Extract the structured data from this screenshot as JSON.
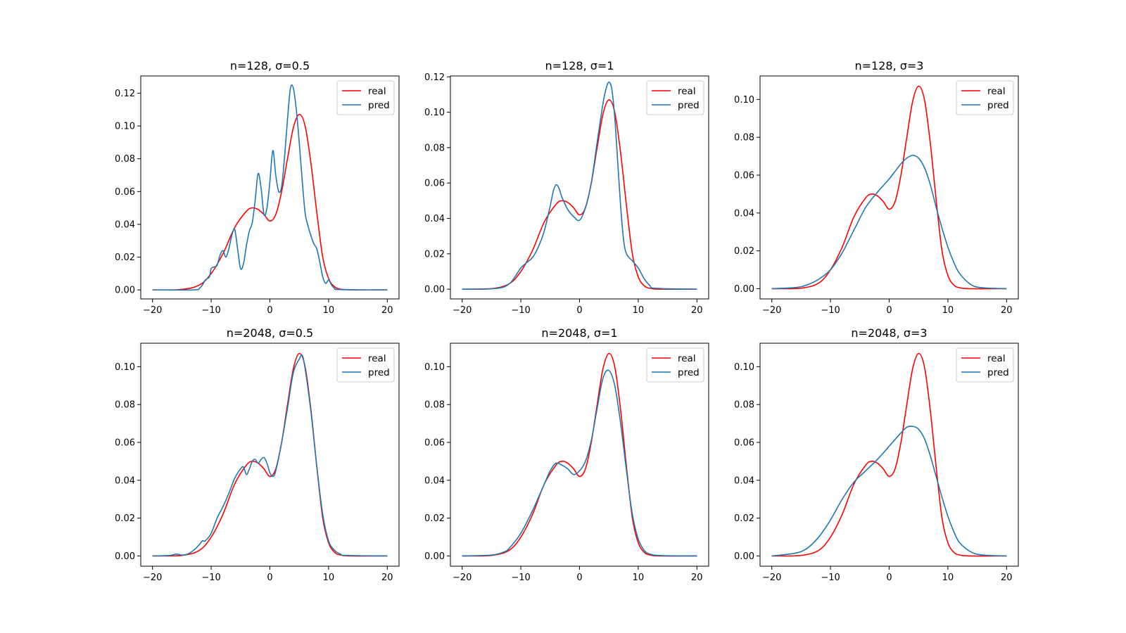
{
  "figure": {
    "background": "#ffffff",
    "rows": 2,
    "cols": 3,
    "legend_location": "top-right"
  },
  "series_style": {
    "real": {
      "color": "#ff0000"
    },
    "pred": {
      "color": "#1f77b4"
    }
  },
  "chart_data": [
    {
      "type": "line",
      "title": "n=128, σ=0.5",
      "xlabel": "",
      "ylabel": "",
      "xlim": [
        -22,
        22
      ],
      "ylim": [
        -0.0055,
        0.1305
      ],
      "xticks": [
        -20,
        -10,
        0,
        10,
        20
      ],
      "xtick_labels": [
        "−20",
        "−10",
        "0",
        "10",
        "20"
      ],
      "yticks": [
        0,
        0.02,
        0.04,
        0.06,
        0.08,
        0.1,
        0.12
      ],
      "ytick_labels": [
        "0.00",
        "0.02",
        "0.04",
        "0.06",
        "0.08",
        "0.10",
        "0.12"
      ],
      "legend": [
        "real",
        "pred"
      ],
      "grid": false,
      "series": [
        {
          "name": "real",
          "x": [
            -20,
            -15,
            -12,
            -10,
            -8,
            -6,
            -4,
            -3,
            -2,
            -1,
            0,
            1,
            2,
            3,
            4,
            5,
            6,
            7,
            8,
            9,
            10,
            11,
            12,
            14,
            20
          ],
          "y": [
            0,
            0.0003,
            0.003,
            0.01,
            0.022,
            0.038,
            0.048,
            0.05,
            0.049,
            0.046,
            0.042,
            0.046,
            0.06,
            0.08,
            0.099,
            0.107,
            0.1,
            0.077,
            0.047,
            0.02,
            0.007,
            0.002,
            0.0005,
            0,
            0
          ]
        },
        {
          "name": "pred",
          "x": [
            -20,
            -13,
            -12,
            -11.5,
            -11,
            -10.3,
            -10,
            -9.5,
            -9,
            -8.5,
            -8,
            -7.5,
            -7,
            -6.5,
            -6,
            -5.5,
            -5,
            -4.5,
            -4,
            -3.5,
            -3,
            -2.5,
            -2,
            -1.5,
            -1,
            -0.5,
            0,
            0.5,
            1,
            1.5,
            2,
            2.5,
            3,
            3.5,
            4,
            4.5,
            5,
            5.5,
            6,
            6.5,
            7,
            7.5,
            8,
            8.5,
            9,
            9.5,
            10,
            10.5,
            11,
            12,
            20
          ],
          "y": [
            0,
            0,
            0.001,
            0.003,
            0.006,
            0.008,
            0.013,
            0.014,
            0.015,
            0.021,
            0.024,
            0.02,
            0.025,
            0.033,
            0.037,
            0.025,
            0.013,
            0.016,
            0.027,
            0.036,
            0.041,
            0.055,
            0.071,
            0.062,
            0.046,
            0.05,
            0.066,
            0.085,
            0.07,
            0.06,
            0.063,
            0.081,
            0.104,
            0.123,
            0.123,
            0.11,
            0.09,
            0.067,
            0.047,
            0.039,
            0.033,
            0.028,
            0.025,
            0.017,
            0.008,
            0.004,
            0.006,
            0.003,
            0.001,
            0.0002,
            0
          ]
        }
      ]
    },
    {
      "type": "line",
      "title": "n=128, σ=1",
      "xlabel": "",
      "ylabel": "",
      "xlim": [
        -22,
        22
      ],
      "ylim": [
        -0.0055,
        0.1205
      ],
      "xticks": [
        -20,
        -10,
        0,
        10,
        20
      ],
      "xtick_labels": [
        "−20",
        "−10",
        "0",
        "10",
        "20"
      ],
      "yticks": [
        0,
        0.02,
        0.04,
        0.06,
        0.08,
        0.1,
        0.12
      ],
      "ytick_labels": [
        "0.00",
        "0.02",
        "0.04",
        "0.06",
        "0.08",
        "0.10",
        "0.12"
      ],
      "legend": [
        "real",
        "pred"
      ],
      "grid": false,
      "series": [
        {
          "name": "real",
          "x": [
            -20,
            -15,
            -12,
            -10,
            -8,
            -6,
            -4,
            -3,
            -2,
            -1,
            0,
            1,
            2,
            3,
            4,
            5,
            6,
            7,
            8,
            9,
            10,
            11,
            12,
            14,
            20
          ],
          "y": [
            0,
            0.0003,
            0.003,
            0.01,
            0.022,
            0.038,
            0.048,
            0.05,
            0.049,
            0.046,
            0.042,
            0.046,
            0.06,
            0.08,
            0.099,
            0.107,
            0.1,
            0.077,
            0.047,
            0.02,
            0.007,
            0.002,
            0.0005,
            0,
            0
          ]
        },
        {
          "name": "pred",
          "x": [
            -20,
            -14,
            -12,
            -11,
            -10,
            -9,
            -8,
            -7,
            -6,
            -5,
            -4.5,
            -4,
            -3.5,
            -3,
            -2,
            -1,
            0,
            1,
            2,
            3,
            4,
            4.5,
            5,
            5.5,
            6,
            6.5,
            7,
            7.5,
            8,
            9,
            10,
            11,
            12,
            13,
            20
          ],
          "y": [
            0,
            0.0005,
            0.003,
            0.007,
            0.012,
            0.015,
            0.018,
            0.024,
            0.033,
            0.047,
            0.055,
            0.059,
            0.057,
            0.052,
            0.045,
            0.041,
            0.039,
            0.046,
            0.06,
            0.083,
            0.105,
            0.113,
            0.117,
            0.113,
            0.097,
            0.072,
            0.047,
            0.028,
            0.02,
            0.016,
            0.012,
            0.006,
            0.002,
            0.0005,
            0
          ]
        }
      ]
    },
    {
      "type": "line",
      "title": "n=128, σ=3",
      "xlabel": "",
      "ylabel": "",
      "xlim": [
        -22,
        22
      ],
      "ylim": [
        -0.0054,
        0.1124
      ],
      "xticks": [
        -20,
        -10,
        0,
        10,
        20
      ],
      "xtick_labels": [
        "−20",
        "−10",
        "0",
        "10",
        "20"
      ],
      "yticks": [
        0,
        0.02,
        0.04,
        0.06,
        0.08,
        0.1
      ],
      "ytick_labels": [
        "0.00",
        "0.02",
        "0.04",
        "0.06",
        "0.08",
        "0.10"
      ],
      "legend": [
        "real",
        "pred"
      ],
      "grid": false,
      "series": [
        {
          "name": "real",
          "x": [
            -20,
            -15,
            -12,
            -10,
            -8,
            -6,
            -4,
            -3,
            -2,
            -1,
            0,
            1,
            2,
            3,
            4,
            5,
            6,
            7,
            8,
            9,
            10,
            11,
            12,
            14,
            20
          ],
          "y": [
            0,
            0.0003,
            0.003,
            0.01,
            0.022,
            0.038,
            0.048,
            0.05,
            0.049,
            0.046,
            0.042,
            0.046,
            0.06,
            0.08,
            0.099,
            0.107,
            0.1,
            0.077,
            0.047,
            0.02,
            0.007,
            0.002,
            0.0005,
            0,
            0
          ]
        },
        {
          "name": "pred",
          "x": [
            -20,
            -16,
            -14,
            -12,
            -10,
            -8,
            -6,
            -4,
            -2,
            0,
            2,
            3,
            4,
            5,
            6,
            7,
            8,
            9,
            10,
            11,
            12,
            14,
            16,
            20
          ],
          "y": [
            0,
            0.0006,
            0.002,
            0.005,
            0.01,
            0.019,
            0.031,
            0.043,
            0.051,
            0.058,
            0.066,
            0.069,
            0.0705,
            0.069,
            0.064,
            0.055,
            0.043,
            0.032,
            0.022,
            0.014,
            0.008,
            0.002,
            0.0005,
            0
          ]
        }
      ]
    },
    {
      "type": "line",
      "title": "n=2048, σ=0.5",
      "xlabel": "",
      "ylabel": "",
      "xlim": [
        -22,
        22
      ],
      "ylim": [
        -0.0054,
        0.1124
      ],
      "xticks": [
        -20,
        -10,
        0,
        10,
        20
      ],
      "xtick_labels": [
        "−20",
        "−10",
        "0",
        "10",
        "20"
      ],
      "yticks": [
        0,
        0.02,
        0.04,
        0.06,
        0.08,
        0.1
      ],
      "ytick_labels": [
        "0.00",
        "0.02",
        "0.04",
        "0.06",
        "0.08",
        "0.10"
      ],
      "legend": [
        "real",
        "pred"
      ],
      "grid": false,
      "series": [
        {
          "name": "real",
          "x": [
            -20,
            -15,
            -12,
            -10,
            -8,
            -6,
            -4,
            -3,
            -2,
            -1,
            0,
            1,
            2,
            3,
            4,
            5,
            6,
            7,
            8,
            9,
            10,
            11,
            12,
            14,
            20
          ],
          "y": [
            0,
            0.0003,
            0.003,
            0.01,
            0.022,
            0.038,
            0.048,
            0.05,
            0.049,
            0.046,
            0.042,
            0.046,
            0.06,
            0.08,
            0.099,
            0.107,
            0.1,
            0.077,
            0.047,
            0.02,
            0.007,
            0.002,
            0.0005,
            0,
            0
          ]
        },
        {
          "name": "pred",
          "x": [
            -20,
            -17,
            -16,
            -15,
            -14,
            -13,
            -12,
            -11.5,
            -11,
            -10,
            -9,
            -8,
            -7,
            -6,
            -5,
            -4.5,
            -4,
            -3.5,
            -3,
            -2.5,
            -2,
            -1.5,
            -1,
            -0.5,
            0,
            0.5,
            1,
            2,
            3,
            4,
            5,
            5.5,
            6,
            7,
            8,
            9,
            10,
            11,
            12,
            13,
            20
          ],
          "y": [
            0,
            0.0003,
            0.001,
            0.0005,
            0.001,
            0.003,
            0.006,
            0.008,
            0.008,
            0.012,
            0.02,
            0.026,
            0.033,
            0.041,
            0.046,
            0.047,
            0.043,
            0.046,
            0.05,
            0.051,
            0.049,
            0.051,
            0.052,
            0.049,
            0.044,
            0.042,
            0.045,
            0.06,
            0.078,
            0.097,
            0.104,
            0.106,
            0.099,
            0.076,
            0.047,
            0.022,
            0.008,
            0.003,
            0.001,
            0.0003,
            0
          ]
        }
      ]
    },
    {
      "type": "line",
      "title": "n=2048, σ=1",
      "xlabel": "",
      "ylabel": "",
      "xlim": [
        -22,
        22
      ],
      "ylim": [
        -0.0054,
        0.1124
      ],
      "xticks": [
        -20,
        -10,
        0,
        10,
        20
      ],
      "xtick_labels": [
        "−20",
        "−10",
        "0",
        "10",
        "20"
      ],
      "yticks": [
        0,
        0.02,
        0.04,
        0.06,
        0.08,
        0.1
      ],
      "ytick_labels": [
        "0.00",
        "0.02",
        "0.04",
        "0.06",
        "0.08",
        "0.10"
      ],
      "legend": [
        "real",
        "pred"
      ],
      "grid": false,
      "series": [
        {
          "name": "real",
          "x": [
            -20,
            -15,
            -12,
            -10,
            -8,
            -6,
            -4,
            -3,
            -2,
            -1,
            0,
            1,
            2,
            3,
            4,
            5,
            6,
            7,
            8,
            9,
            10,
            11,
            12,
            14,
            20
          ],
          "y": [
            0,
            0.0003,
            0.003,
            0.01,
            0.022,
            0.038,
            0.048,
            0.05,
            0.049,
            0.046,
            0.042,
            0.046,
            0.06,
            0.08,
            0.099,
            0.107,
            0.1,
            0.077,
            0.047,
            0.02,
            0.007,
            0.002,
            0.0005,
            0,
            0
          ]
        },
        {
          "name": "pred",
          "x": [
            -20,
            -15,
            -13,
            -12,
            -10,
            -8,
            -6,
            -5,
            -4,
            -3,
            -2,
            -1,
            0,
            1,
            2,
            3,
            4,
            5,
            6,
            7,
            8,
            9,
            10,
            11,
            12,
            14,
            20
          ],
          "y": [
            0,
            0.0005,
            0.002,
            0.004,
            0.012,
            0.024,
            0.038,
            0.045,
            0.049,
            0.048,
            0.046,
            0.043,
            0.045,
            0.05,
            0.061,
            0.078,
            0.094,
            0.098,
            0.09,
            0.07,
            0.045,
            0.022,
            0.009,
            0.003,
            0.001,
            0.0002,
            0
          ]
        }
      ]
    },
    {
      "type": "line",
      "title": "n=2048, σ=3",
      "xlabel": "",
      "ylabel": "",
      "xlim": [
        -22,
        22
      ],
      "ylim": [
        -0.0054,
        0.1124
      ],
      "xticks": [
        -20,
        -10,
        0,
        10,
        20
      ],
      "xtick_labels": [
        "−20",
        "−10",
        "0",
        "10",
        "20"
      ],
      "yticks": [
        0,
        0.02,
        0.04,
        0.06,
        0.08,
        0.1
      ],
      "ytick_labels": [
        "0.00",
        "0.02",
        "0.04",
        "0.06",
        "0.08",
        "0.10"
      ],
      "legend": [
        "real",
        "pred"
      ],
      "grid": false,
      "series": [
        {
          "name": "real",
          "x": [
            -20,
            -15,
            -12,
            -10,
            -8,
            -6,
            -4,
            -3,
            -2,
            -1,
            0,
            1,
            2,
            3,
            4,
            5,
            6,
            7,
            8,
            9,
            10,
            11,
            12,
            14,
            20
          ],
          "y": [
            0,
            0.0003,
            0.003,
            0.01,
            0.022,
            0.038,
            0.048,
            0.05,
            0.049,
            0.046,
            0.042,
            0.046,
            0.06,
            0.08,
            0.099,
            0.107,
            0.1,
            0.077,
            0.047,
            0.02,
            0.007,
            0.002,
            0.0005,
            0,
            0
          ]
        },
        {
          "name": "pred",
          "x": [
            -20,
            -16,
            -14,
            -12,
            -10,
            -8,
            -6,
            -4,
            -2,
            0,
            2,
            3,
            4,
            5,
            6,
            7,
            8,
            9,
            10,
            11,
            12,
            14,
            16,
            20
          ],
          "y": [
            0,
            0.0015,
            0.004,
            0.01,
            0.019,
            0.03,
            0.039,
            0.045,
            0.051,
            0.058,
            0.065,
            0.068,
            0.0685,
            0.067,
            0.062,
            0.053,
            0.042,
            0.031,
            0.021,
            0.013,
            0.007,
            0.002,
            0.0005,
            0
          ]
        }
      ]
    }
  ]
}
